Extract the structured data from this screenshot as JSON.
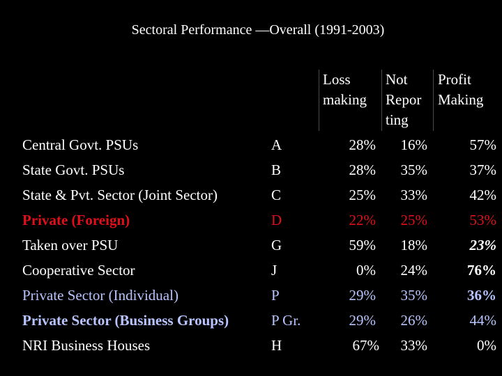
{
  "title": "Sectoral Performance —Overall (1991-2003)",
  "headers": {
    "loss": [
      "Loss",
      "making"
    ],
    "not_reporting": [
      "Not",
      "Repor",
      "ting"
    ],
    "profit": [
      "Profit",
      "Making"
    ]
  },
  "rows": [
    {
      "sector": "Central Govt. PSUs",
      "code": "A",
      "loss": "28%",
      "not_reporting": "16%",
      "profit": "57%"
    },
    {
      "sector": "State Govt. PSUs",
      "code": "B",
      "loss": "28%",
      "not_reporting": "35%",
      "profit": "37%"
    },
    {
      "sector": "State & Pvt. Sector (Joint Sector)",
      "code": "C",
      "loss": "25%",
      "not_reporting": "33%",
      "profit": "42%"
    },
    {
      "sector": "Private (Foreign)",
      "code": "D",
      "loss": "22%",
      "not_reporting": "25%",
      "profit": "53%"
    },
    {
      "sector": "Taken over PSU",
      "code": "G",
      "loss": "59%",
      "not_reporting": "18%",
      "profit": "23%"
    },
    {
      "sector": "Cooperative Sector",
      "code": "J",
      "loss": "0%",
      "not_reporting": "24%",
      "profit": "76%"
    },
    {
      "sector": "Private Sector (Individual)",
      "code": "P",
      "loss": "29%",
      "not_reporting": "35%",
      "profit": "36%"
    },
    {
      "sector": "Private Sector (Business Groups)",
      "code": "P Gr.",
      "loss": "29%",
      "not_reporting": "26%",
      "profit": "44%"
    },
    {
      "sector": "NRI Business Houses",
      "code": "H",
      "loss": "67%",
      "not_reporting": "33%",
      "profit": "0%"
    }
  ],
  "colors": {
    "background": "#000000",
    "text": "#ffffff",
    "red": "#e0101a",
    "blue": "#b8c4ff"
  }
}
